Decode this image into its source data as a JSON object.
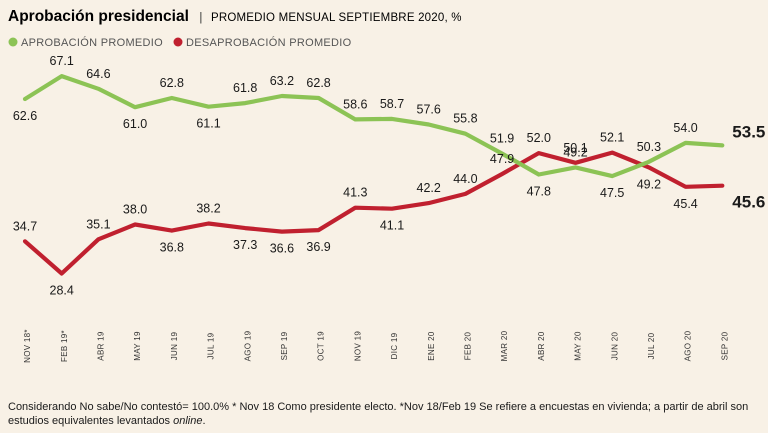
{
  "chart_data": {
    "type": "line",
    "title": "Aprobación presidencial",
    "subtitle": "PROMEDIO MENSUAL SEPTIEMBRE 2020, %",
    "categories": [
      "NOV 18*",
      "FEB 19*",
      "ABR 19",
      "MAY 19",
      "JUN 19",
      "JUL 19",
      "AGO 19",
      "SEP 19",
      "OCT 19",
      "NOV 19",
      "DIC 19",
      "ENE 20",
      "FEB 20",
      "MAR 20",
      "ABR 20",
      "MAY 20",
      "JUN 20",
      "JUL 20",
      "AGO 20",
      "SEP 20"
    ],
    "series": [
      {
        "name": "APROBACIÓN PROMEDIO",
        "color": "#8cc355",
        "values": [
          62.6,
          67.1,
          64.6,
          61.0,
          62.8,
          61.1,
          61.8,
          63.2,
          62.8,
          58.6,
          58.7,
          57.6,
          55.8,
          51.9,
          47.8,
          49.2,
          47.5,
          50.3,
          54.0,
          53.5
        ],
        "labels": [
          "62.6",
          "67.1",
          "64.6",
          "61.0",
          "62.8",
          "61.1",
          "61.8",
          "63.2",
          "62.8",
          "58.6",
          "58.7",
          "57.6",
          "55.8",
          "51.9",
          "47.8",
          "49.2",
          "47.5",
          "50.3",
          "54.0",
          "53.5"
        ]
      },
      {
        "name": "DESAPROBACIÓN PROMEDIO",
        "color": "#c0202f",
        "values": [
          34.7,
          28.4,
          35.1,
          38.0,
          36.8,
          38.2,
          37.3,
          36.6,
          36.9,
          41.3,
          41.1,
          42.2,
          44.0,
          47.9,
          52.0,
          50.1,
          52.1,
          49.2,
          45.4,
          45.6
        ],
        "labels": [
          "34.7",
          "28.4",
          "35.1",
          "38.0",
          "36.8",
          "38.2",
          "37.3",
          "36.6",
          "36.9",
          "41.3",
          "41.1",
          "42.2",
          "44.0",
          "47.9",
          "52.0",
          "50.1",
          "52.1",
          "49.2",
          "45.4",
          "45.6"
        ]
      }
    ],
    "ylim": [
      25,
      70
    ],
    "grid": false,
    "legend": "top-left"
  },
  "footnote": {
    "text": "Considerando No sabe/No contestó= 100.0% * Nov 18 Como presidente electo. *Nov 18/Feb 19 Se refiere a encuestas en vivienda; a partir de abril son estudios equivalentes levantados ",
    "italic": "online",
    "end": "."
  }
}
